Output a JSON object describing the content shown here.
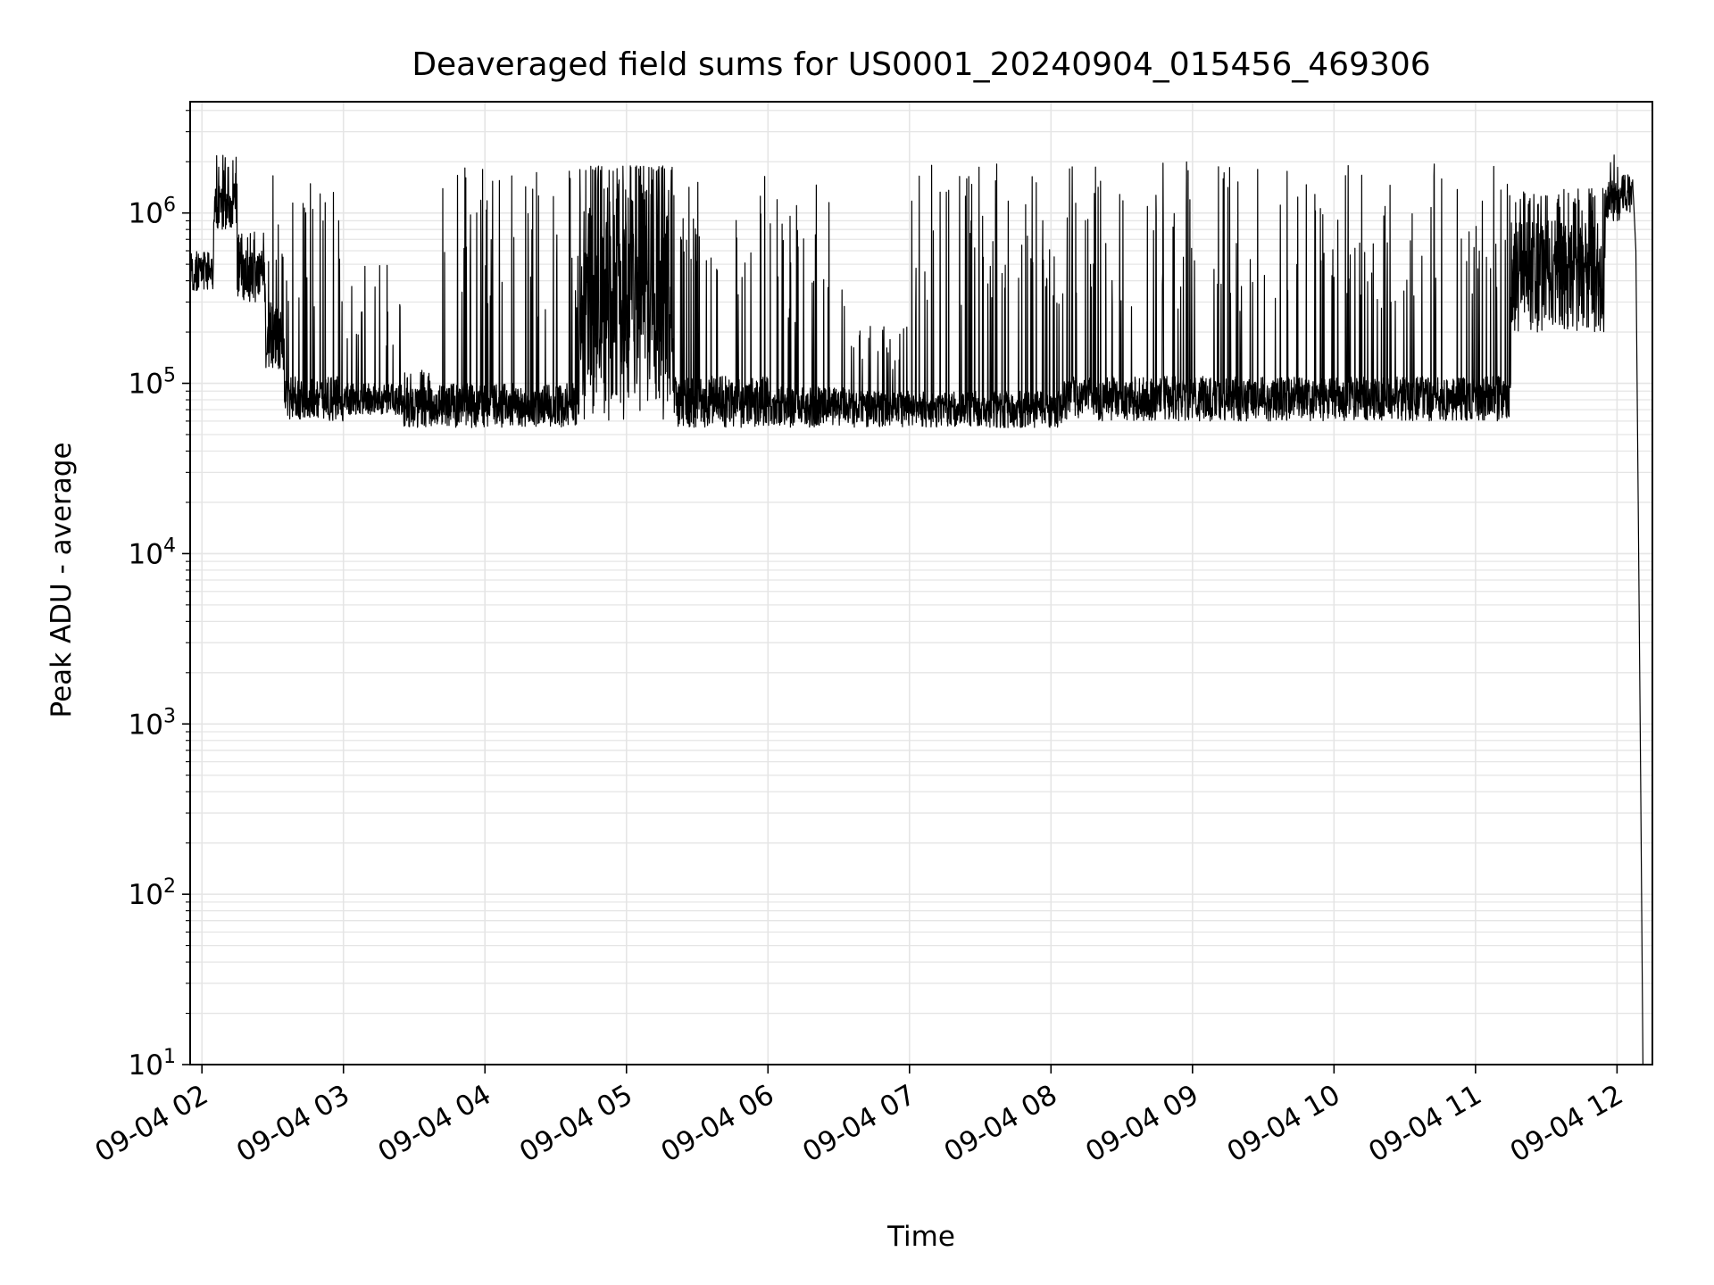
{
  "chart_data": {
    "type": "line",
    "title": "Deaveraged field sums for US0001_20240904_015456_469306",
    "xlabel": "Time",
    "ylabel": "Peak ADU - average",
    "x_unit": "hours",
    "xlim": [
      "09-04 01:55",
      "09-04 12:15"
    ],
    "xticks": [
      "09-04 02",
      "09-04 03",
      "09-04 04",
      "09-04 05",
      "09-04 06",
      "09-04 07",
      "09-04 08",
      "09-04 09",
      "09-04 10",
      "09-04 11",
      "09-04 12"
    ],
    "yscale": "log",
    "ylim": [
      10,
      4500000
    ],
    "yticks": [
      {
        "value": 10,
        "base": "10",
        "exp": "1"
      },
      {
        "value": 100,
        "base": "10",
        "exp": "2"
      },
      {
        "value": 1000,
        "base": "10",
        "exp": "3"
      },
      {
        "value": 10000,
        "base": "10",
        "exp": "4"
      },
      {
        "value": 100000,
        "base": "10",
        "exp": "5"
      },
      {
        "value": 1000000,
        "base": "10",
        "exp": "6"
      }
    ],
    "grid": true,
    "line_color": "#000000",
    "grid_color": "#e5e5e5",
    "series": [
      {
        "segments": [
          {
            "start": "01:55",
            "end": "02:05",
            "low": 350000,
            "high": 600000,
            "spike": 0
          },
          {
            "start": "02:05",
            "end": "02:15",
            "low": 800000,
            "high": 1500000,
            "spike": 2200000
          },
          {
            "start": "02:15",
            "end": "02:27",
            "low": 300000,
            "high": 600000,
            "spike": 780000
          },
          {
            "start": "02:27",
            "end": "02:35",
            "low": 120000,
            "high": 300000,
            "spike": 1700000
          },
          {
            "start": "02:35",
            "end": "03:00",
            "low": 60000,
            "high": 110000,
            "spike": 1900000
          },
          {
            "start": "03:00",
            "end": "03:25",
            "low": 65000,
            "high": 100000,
            "spike": 500000
          },
          {
            "start": "03:25",
            "end": "03:40",
            "low": 55000,
            "high": 95000,
            "spike": 120000
          },
          {
            "start": "03:40",
            "end": "04:40",
            "low": 55000,
            "high": 100000,
            "spike": 1850000
          },
          {
            "start": "04:40",
            "end": "05:20",
            "low": 60000,
            "high": 1700000,
            "spike": 1900000
          },
          {
            "start": "05:20",
            "end": "06:00",
            "low": 55000,
            "high": 110000,
            "spike": 1800000
          },
          {
            "start": "06:00",
            "end": "06:35",
            "low": 55000,
            "high": 95000,
            "spike": 1600000
          },
          {
            "start": "06:35",
            "end": "07:00",
            "low": 55000,
            "high": 90000,
            "spike": 220000
          },
          {
            "start": "07:00",
            "end": "08:05",
            "low": 55000,
            "high": 90000,
            "spike": 2000000
          },
          {
            "start": "08:05",
            "end": "11:15",
            "low": 60000,
            "high": 110000,
            "spike": 2000000
          },
          {
            "start": "11:15",
            "end": "11:55",
            "low": 200000,
            "high": 900000,
            "spike": 1400000
          },
          {
            "start": "11:55",
            "end": "12:02",
            "low": 900000,
            "high": 1600000,
            "spike": 2600000
          },
          {
            "start": "12:02",
            "end": "12:07",
            "low": 1000000,
            "high": 1600000,
            "spike": 1700000
          }
        ],
        "tail": [
          {
            "x": "12:07",
            "y": 1200000
          },
          {
            "x": "12:08",
            "y": 600000
          },
          {
            "x": "12:09",
            "y": 20000
          },
          {
            "x": "12:10",
            "y": 500
          },
          {
            "x": "12:11",
            "y": 10
          }
        ]
      }
    ]
  }
}
